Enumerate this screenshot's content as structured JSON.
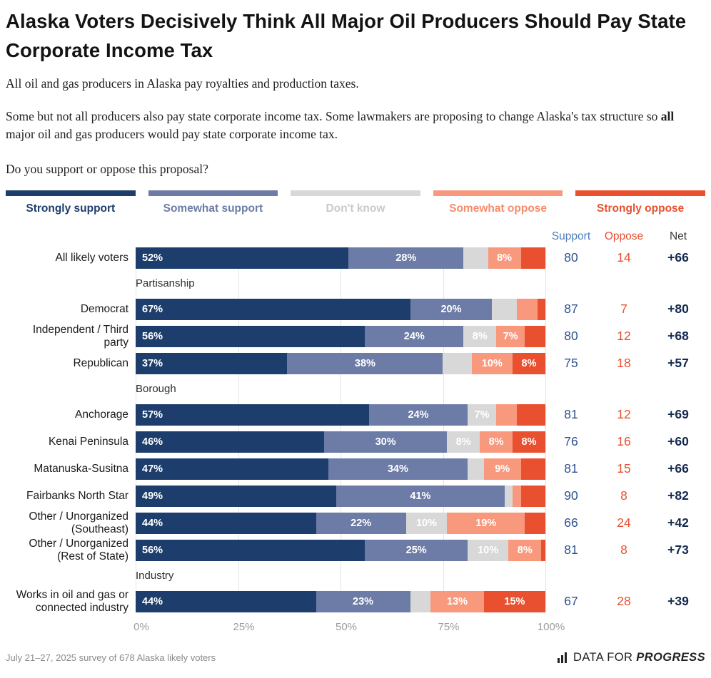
{
  "header": {
    "title": "Alaska Voters Decisively Think All Major Oil Producers Should Pay State Corporate Income Tax",
    "para1": "All oil and gas producers in Alaska pay royalties and production taxes.",
    "para2_pre": "Some but not all producers also pay state corporate income tax. Some lawmakers are proposing to change Alaska's tax structure so ",
    "para2_bold": "all",
    "para2_post": " major oil and gas producers would pay state corporate income tax.",
    "question": "Do you support or oppose this proposal?"
  },
  "legend": [
    {
      "label": "Strongly support",
      "color": "#1d3d6c",
      "text_color": "#1d3d6c"
    },
    {
      "label": "Somewhat support",
      "color": "#6d7ca6",
      "text_color": "#6d7ca6"
    },
    {
      "label": "Don't know",
      "color": "#d8d8d8",
      "text_color": "#c9c9c9"
    },
    {
      "label": "Somewhat oppose",
      "color": "#f8997d",
      "text_color": "#f58c6b"
    },
    {
      "label": "Strongly oppose",
      "color": "#e8502f",
      "text_color": "#e8502f"
    }
  ],
  "table_headers": {
    "support": "Support",
    "oppose": "Oppose",
    "net": "Net"
  },
  "chart_data": {
    "type": "bar",
    "variant": "horizontal-stacked",
    "xlim": [
      0,
      100
    ],
    "grid": true,
    "ticks": [
      {
        "label": "0%",
        "pos": 0
      },
      {
        "label": "25%",
        "pos": 25
      },
      {
        "label": "50%",
        "pos": 50
      },
      {
        "label": "75%",
        "pos": 75
      },
      {
        "label": "100%",
        "pos": 100
      }
    ],
    "series": [
      {
        "name": "Strongly support",
        "color": "#1d3d6c"
      },
      {
        "name": "Somewhat support",
        "color": "#6d7ca6"
      },
      {
        "name": "Don't know",
        "color": "#d8d8d8"
      },
      {
        "name": "Somewhat oppose",
        "color": "#f8997d"
      },
      {
        "name": "Strongly oppose",
        "color": "#e8502f"
      }
    ],
    "groups": [
      {
        "section": "",
        "rows": [
          {
            "label": "All likely voters",
            "values": [
              52,
              28,
              6,
              8,
              6
            ],
            "value_labels": [
              "52%",
              "28%",
              "",
              "8%",
              ""
            ],
            "support": "80",
            "oppose": "14",
            "net": "+66"
          }
        ]
      },
      {
        "section": "Partisanship",
        "rows": [
          {
            "label": "Democrat",
            "values": [
              67,
              20,
              6,
              5,
              2
            ],
            "value_labels": [
              "67%",
              "20%",
              "",
              "",
              ""
            ],
            "support": "87",
            "oppose": "7",
            "net": "+80"
          },
          {
            "label": "Independent / Third party",
            "values": [
              56,
              24,
              8,
              7,
              5
            ],
            "value_labels": [
              "56%",
              "24%",
              "8%",
              "7%",
              ""
            ],
            "support": "80",
            "oppose": "12",
            "net": "+68"
          },
          {
            "label": "Republican",
            "values": [
              37,
              38,
              7,
              10,
              8
            ],
            "value_labels": [
              "37%",
              "38%",
              "",
              "10%",
              "8%"
            ],
            "support": "75",
            "oppose": "18",
            "net": "+57"
          }
        ]
      },
      {
        "section": "Borough",
        "rows": [
          {
            "label": "Anchorage",
            "values": [
              57,
              24,
              7,
              5,
              7
            ],
            "value_labels": [
              "57%",
              "24%",
              "7%",
              "",
              ""
            ],
            "support": "81",
            "oppose": "12",
            "net": "+69"
          },
          {
            "label": "Kenai Peninsula",
            "values": [
              46,
              30,
              8,
              8,
              8
            ],
            "value_labels": [
              "46%",
              "30%",
              "8%",
              "8%",
              "8%"
            ],
            "support": "76",
            "oppose": "16",
            "net": "+60"
          },
          {
            "label": "Matanuska-Susitna",
            "values": [
              47,
              34,
              4,
              9,
              6
            ],
            "value_labels": [
              "47%",
              "34%",
              "",
              "9%",
              ""
            ],
            "support": "81",
            "oppose": "15",
            "net": "+66"
          },
          {
            "label": "Fairbanks North Star",
            "values": [
              49,
              41,
              2,
              2,
              6
            ],
            "value_labels": [
              "49%",
              "41%",
              "",
              "",
              ""
            ],
            "support": "90",
            "oppose": "8",
            "net": "+82"
          },
          {
            "label": "Other / Unorganized (Southeast)",
            "values": [
              44,
              22,
              10,
              19,
              5
            ],
            "value_labels": [
              "44%",
              "22%",
              "10%",
              "19%",
              ""
            ],
            "support": "66",
            "oppose": "24",
            "net": "+42"
          },
          {
            "label": "Other / Unorganized (Rest of State)",
            "values": [
              56,
              25,
              10,
              8,
              1
            ],
            "value_labels": [
              "56%",
              "25%",
              "10%",
              "8%",
              ""
            ],
            "support": "81",
            "oppose": "8",
            "net": "+73"
          }
        ]
      },
      {
        "section": "Industry",
        "rows": [
          {
            "label": "Works in oil and gas or connected industry",
            "values": [
              44,
              23,
              5,
              13,
              15
            ],
            "value_labels": [
              "44%",
              "23%",
              "",
              "13%",
              "15%"
            ],
            "support": "67",
            "oppose": "28",
            "net": "+39"
          }
        ]
      }
    ]
  },
  "footer": {
    "note": "July 21–27, 2025 survey of 678 Alaska likely voters",
    "logo_prefix": "DATA FOR",
    "logo_suffix": "PROGRESS"
  }
}
